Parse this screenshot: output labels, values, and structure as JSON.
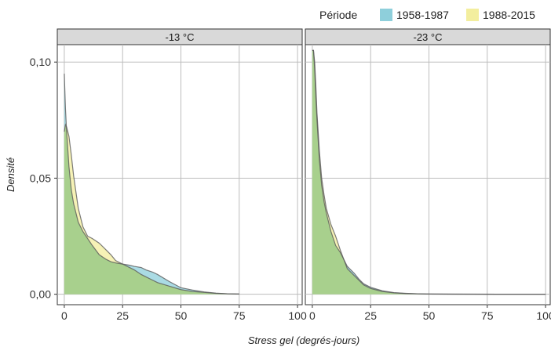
{
  "chart_data": {
    "type": "area",
    "legend": {
      "title": "Période",
      "position": "top-right",
      "entries": [
        {
          "label": "1958-1987",
          "color": "#8ecfdb"
        },
        {
          "label": "1988-2015",
          "color": "#f3ee9e"
        }
      ]
    },
    "overlap_color": "#a8d08d",
    "xlabel": "Stress gel (degrés-jours)",
    "ylabel": "Densité",
    "xlim": [
      -3,
      102
    ],
    "ylim": [
      -0.0045,
      0.1075
    ],
    "x_ticks": [
      {
        "value": 0,
        "label": "0"
      },
      {
        "value": 25,
        "label": "25"
      },
      {
        "value": 50,
        "label": "50"
      },
      {
        "value": 75,
        "label": "75"
      },
      {
        "value": 100,
        "label": "100"
      }
    ],
    "y_ticks": [
      {
        "value": 0,
        "label": "0,00"
      },
      {
        "value": 0.05,
        "label": "0,05"
      },
      {
        "value": 0.1,
        "label": "0,10"
      }
    ],
    "grid": true,
    "panels": [
      {
        "strip": "-13 °C",
        "series": [
          {
            "name": "1958-1987",
            "x": [
              0,
              0.5,
              1,
              2,
              3,
              4,
              6,
              8,
              10,
              12,
              15,
              18,
              20,
              22,
              25,
              28,
              30,
              33,
              35,
              38,
              40,
              45,
              50,
              55,
              60,
              65,
              70,
              75
            ],
            "y": [
              0.095,
              0.08,
              0.07,
              0.055,
              0.045,
              0.039,
              0.031,
              0.027,
              0.024,
              0.021,
              0.017,
              0.015,
              0.014,
              0.0135,
              0.013,
              0.0125,
              0.012,
              0.0115,
              0.0105,
              0.0095,
              0.0085,
              0.0055,
              0.0028,
              0.0018,
              0.001,
              0.0005,
              0.0002,
              0.0001
            ]
          },
          {
            "name": "1988-2015",
            "x": [
              0,
              0.5,
              1,
              2,
              3,
              4,
              6,
              8,
              10,
              12,
              15,
              18,
              20,
              22,
              25,
              28,
              30,
              33,
              35,
              38,
              40,
              45,
              50,
              55,
              60,
              65,
              70,
              75
            ],
            "y": [
              0.07,
              0.073,
              0.072,
              0.068,
              0.06,
              0.051,
              0.037,
              0.029,
              0.025,
              0.024,
              0.022,
              0.019,
              0.017,
              0.0145,
              0.013,
              0.0115,
              0.0105,
              0.0085,
              0.0075,
              0.006,
              0.005,
              0.0035,
              0.002,
              0.0012,
              0.0008,
              0.0004,
              0.0002,
              0.0001
            ]
          }
        ]
      },
      {
        "strip": "-23 °C",
        "series": [
          {
            "name": "1958-1987",
            "x": [
              0,
              0.5,
              1,
              1.5,
              2,
              3,
              4,
              5,
              6,
              8,
              10,
              12,
              15,
              18,
              20,
              22,
              25,
              30,
              35,
              40,
              45,
              50,
              60,
              80,
              100
            ],
            "y": [
              0.105,
              0.105,
              0.097,
              0.085,
              0.075,
              0.058,
              0.047,
              0.04,
              0.035,
              0.027,
              0.021,
              0.018,
              0.012,
              0.009,
              0.0065,
              0.0045,
              0.003,
              0.0015,
              0.0007,
              0.0004,
              0.0002,
              0.0001,
              5e-05,
              2e-05,
              0
            ]
          },
          {
            "name": "1988-2015",
            "x": [
              0,
              0.5,
              1,
              1.5,
              2,
              3,
              4,
              5,
              6,
              8,
              10,
              12,
              15,
              18,
              20,
              22,
              25,
              30,
              35,
              40,
              45,
              50,
              60,
              80,
              100
            ],
            "y": [
              0.105,
              0.105,
              0.1,
              0.09,
              0.078,
              0.062,
              0.05,
              0.043,
              0.037,
              0.03,
              0.025,
              0.019,
              0.011,
              0.008,
              0.006,
              0.004,
              0.0025,
              0.0012,
              0.0006,
              0.0003,
              0.0002,
              0.0001,
              5e-05,
              2e-05,
              0
            ]
          }
        ]
      }
    ]
  }
}
